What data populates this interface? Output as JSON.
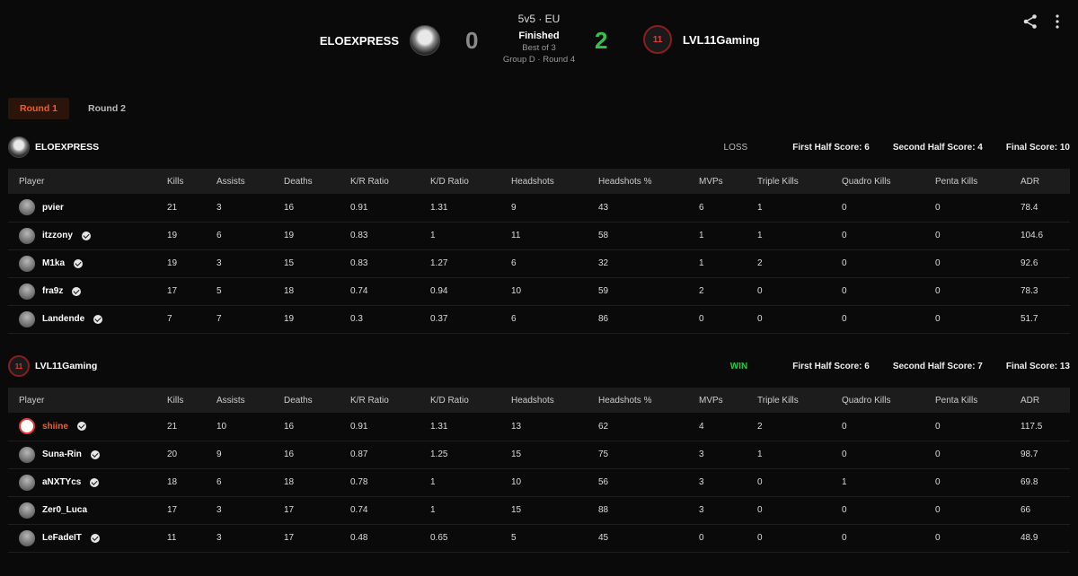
{
  "match": {
    "mode": "5v5 · EU",
    "status": "Finished",
    "best_of": "Best of 3",
    "group": "Group D · Round 4",
    "team_left": {
      "name": "ELOEXPRESS",
      "score": "0"
    },
    "team_right": {
      "name": "LVL11Gaming",
      "score": "2",
      "avatar_text": "11"
    }
  },
  "icons": {
    "share": "share-icon",
    "more": "more-vertical-icon",
    "verified": "verified-icon"
  },
  "colors": {
    "accent": "#ff5a1f",
    "win": "#36c24a",
    "background": "#0a0a0a"
  },
  "tabs": [
    {
      "label": "Round 1",
      "active": true
    },
    {
      "label": "Round 2",
      "active": false
    }
  ],
  "columns": [
    "Player",
    "Kills",
    "Assists",
    "Deaths",
    "K/R Ratio",
    "K/D Ratio",
    "Headshots",
    "Headshots %",
    "MVPs",
    "Triple Kills",
    "Quadro Kills",
    "Penta Kills",
    "ADR"
  ],
  "teams": [
    {
      "name": "ELOEXPRESS",
      "result": "LOSS",
      "first_half": "First Half Score: 6",
      "second_half": "Second Half Score: 4",
      "final": "Final Score: 10",
      "players": [
        {
          "name": "pvier",
          "verified": false,
          "stats": [
            "21",
            "3",
            "16",
            "0.91",
            "1.31",
            "9",
            "43",
            "6",
            "1",
            "0",
            "0",
            "78.4"
          ]
        },
        {
          "name": "itzzony",
          "verified": true,
          "stats": [
            "19",
            "6",
            "19",
            "0.83",
            "1",
            "11",
            "58",
            "1",
            "1",
            "0",
            "0",
            "104.6"
          ]
        },
        {
          "name": "M1ka",
          "verified": true,
          "stats": [
            "19",
            "3",
            "15",
            "0.83",
            "1.27",
            "6",
            "32",
            "1",
            "2",
            "0",
            "0",
            "92.6"
          ]
        },
        {
          "name": "fra9z",
          "verified": true,
          "stats": [
            "17",
            "5",
            "18",
            "0.74",
            "0.94",
            "10",
            "59",
            "2",
            "0",
            "0",
            "0",
            "78.3"
          ]
        },
        {
          "name": "Landende",
          "verified": true,
          "stats": [
            "7",
            "7",
            "19",
            "0.3",
            "0.37",
            "6",
            "86",
            "0",
            "0",
            "0",
            "0",
            "51.7"
          ]
        }
      ]
    },
    {
      "name": "LVL11Gaming",
      "result": "WIN",
      "first_half": "First Half Score: 6",
      "second_half": "Second Half Score: 7",
      "final": "Final Score: 13",
      "players": [
        {
          "name": "shiine",
          "verified": true,
          "highlight": true,
          "stats": [
            "21",
            "10",
            "16",
            "0.91",
            "1.31",
            "13",
            "62",
            "4",
            "2",
            "0",
            "0",
            "117.5"
          ]
        },
        {
          "name": "Suna-Rin",
          "verified": true,
          "stats": [
            "20",
            "9",
            "16",
            "0.87",
            "1.25",
            "15",
            "75",
            "3",
            "1",
            "0",
            "0",
            "98.7"
          ]
        },
        {
          "name": "aNXTYcs",
          "verified": true,
          "stats": [
            "18",
            "6",
            "18",
            "0.78",
            "1",
            "10",
            "56",
            "3",
            "0",
            "1",
            "0",
            "69.8"
          ]
        },
        {
          "name": "Zer0_Luca",
          "verified": false,
          "stats": [
            "17",
            "3",
            "17",
            "0.74",
            "1",
            "15",
            "88",
            "3",
            "0",
            "0",
            "0",
            "66"
          ]
        },
        {
          "name": "LeFadeIT",
          "verified": true,
          "stats": [
            "11",
            "3",
            "17",
            "0.48",
            "0.65",
            "5",
            "45",
            "0",
            "0",
            "0",
            "0",
            "48.9"
          ]
        }
      ]
    }
  ]
}
